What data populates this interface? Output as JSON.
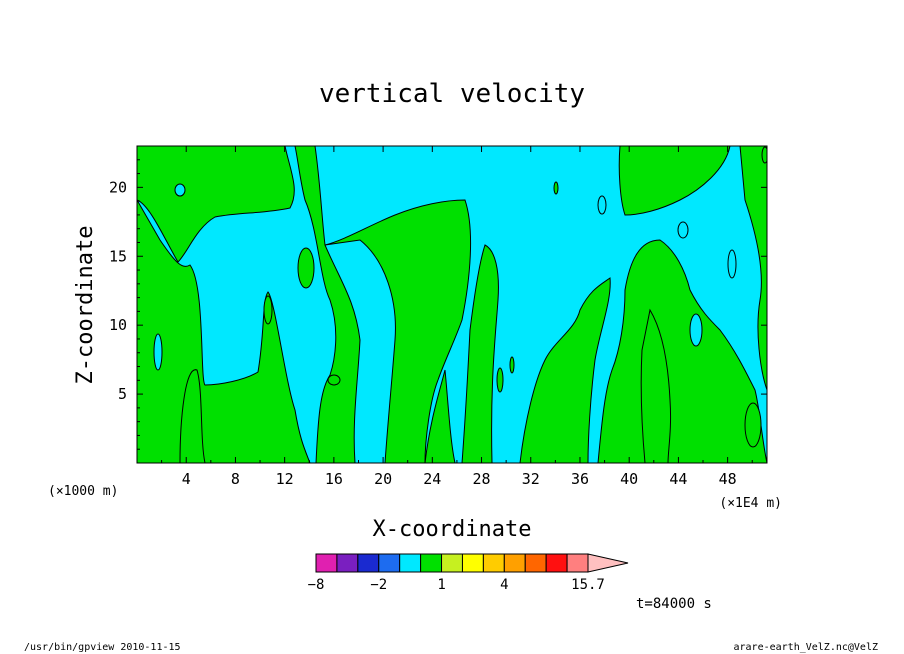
{
  "chart_data": {
    "type": "heatmap",
    "title": "vertical velocity",
    "xlabel": "X-coordinate",
    "ylabel": "Z-coordinate",
    "x_unit_left": "(×1000 m)",
    "x_unit_right": "(×1E4 m)",
    "xlim": [
      0,
      51.2
    ],
    "ylim": [
      0,
      23
    ],
    "xticks": [
      4,
      8,
      12,
      16,
      20,
      24,
      28,
      32,
      36,
      40,
      44,
      48
    ],
    "yticks": [
      5,
      10,
      15,
      20
    ],
    "colorbar": {
      "bounds": [
        -8,
        -6,
        -4,
        -2,
        -1,
        0,
        1,
        2,
        3,
        4,
        7,
        10,
        13,
        15.7
      ],
      "colors": [
        "#e020b0",
        "#7a1fc0",
        "#1a2ad0",
        "#1d6cf0",
        "#00e8ff",
        "#00e000",
        "#c6f020",
        "#ffff00",
        "#ffcc00",
        "#ffa000",
        "#ff6600",
        "#ff1010",
        "#ff7f7f"
      ],
      "extend_color": "#ffc0c0",
      "labels": [
        "−8",
        "−2",
        "1",
        "4",
        "15.7"
      ]
    },
    "field_levels_present": [
      {
        "range": [
          -1,
          0
        ],
        "color": "#00e8ff"
      },
      {
        "range": [
          0,
          1
        ],
        "color": "#00e000"
      }
    ],
    "time_label": "t=84000 s"
  },
  "footer": {
    "left": "/usr/bin/gpview   2010-11-15",
    "right": "arare-earth_VelZ.nc@VelZ"
  }
}
